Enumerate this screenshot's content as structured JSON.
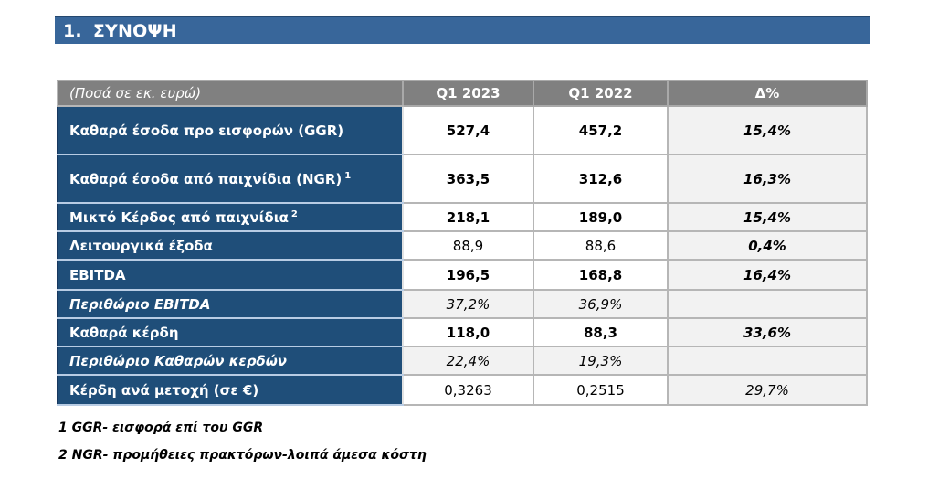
{
  "section": {
    "number": "1.",
    "title": "ΣΥΝΟΨΗ"
  },
  "table": {
    "columns": {
      "label": "(Ποσά σε εκ. ευρώ)",
      "q1_2023": "Q1 2023",
      "q1_2022": "Q1 2022",
      "delta": "Δ%"
    },
    "rows": [
      {
        "label": "Καθαρά έσοδα προ εισφορών (GGR)",
        "sup": "",
        "q1_2023": "527,4",
        "q1_2022": "457,2",
        "delta": "15,4%"
      },
      {
        "label": "Καθαρά έσοδα από παιχνίδια (NGR)",
        "sup": "1",
        "q1_2023": "363,5",
        "q1_2022": "312,6",
        "delta": "16,3%"
      },
      {
        "label": "Μικτό Κέρδος από παιχνίδια",
        "sup": "2",
        "q1_2023": "218,1",
        "q1_2022": "189,0",
        "delta": "15,4%"
      },
      {
        "label": "Λειτουργικά έξοδα",
        "sup": "",
        "q1_2023": "88,9",
        "q1_2022": "88,6",
        "delta": "0,4%"
      },
      {
        "label": "EBITDA",
        "sup": "",
        "q1_2023": "196,5",
        "q1_2022": "168,8",
        "delta": "16,4%"
      },
      {
        "label": "Περιθώριο EBITDA",
        "sup": "",
        "q1_2023": "37,2%",
        "q1_2022": "36,9%",
        "delta": ""
      },
      {
        "label": "Καθαρά κέρδη",
        "sup": "",
        "q1_2023": "118,0",
        "q1_2022": "88,3",
        "delta": "33,6%"
      },
      {
        "label": "Περιθώριο Καθαρών κερδών",
        "sup": "",
        "q1_2023": "22,4%",
        "q1_2022": "19,3%",
        "delta": ""
      },
      {
        "label": "Κέρδη ανά μετοχή (σε €)",
        "sup": "",
        "q1_2023": "0,3263",
        "q1_2022": "0,2515",
        "delta": "29,7%"
      }
    ]
  },
  "footnotes": [
    "1 GGR- εισφορά επί του GGR",
    "2 NGR- προμήθειες πρακτόρων-λοιπά άμεσα κόστη"
  ],
  "colors": {
    "title_bar": "#38669A",
    "title_bar_top_border": "#24476E",
    "row_label_bg": "#1F4E79",
    "row_label_separator": "#B8CCE4",
    "header_bg": "#808080",
    "shaded_cell_bg": "#F2F2F2",
    "grid_border": "#B6B6B6",
    "text_on_dark": "#FFFFFF",
    "text_on_light": "#000000"
  }
}
